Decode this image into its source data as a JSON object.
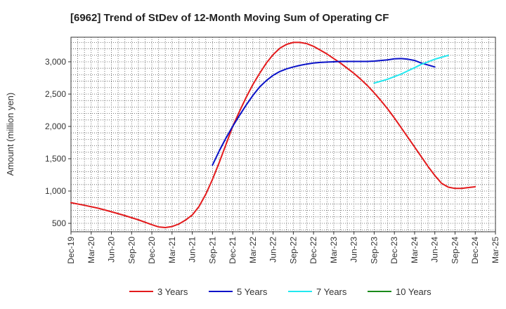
{
  "chart_data": {
    "type": "line",
    "title": "[6962]  Trend of StDev of 12-Month Moving Sum of Operating CF",
    "ylabel": "Amount (million yen)",
    "xlabel": "",
    "ylim": [
      370,
      3380
    ],
    "yticks": [
      500,
      1000,
      1500,
      2000,
      2500,
      3000
    ],
    "ytick_labels": [
      "500",
      "1,000",
      "1,500",
      "2,000",
      "2,500",
      "3,000"
    ],
    "x_categories": [
      "Dec-19",
      "Mar-20",
      "Jun-20",
      "Sep-20",
      "Dec-20",
      "Mar-21",
      "Jun-21",
      "Sep-21",
      "Dec-21",
      "Mar-22",
      "Jun-22",
      "Sep-22",
      "Dec-22",
      "Mar-23",
      "Jun-23",
      "Sep-23",
      "Dec-23",
      "Mar-24",
      "Jun-24",
      "Sep-24",
      "Dec-24",
      "Mar-25"
    ],
    "grid": true,
    "legend_position": "bottom",
    "series": [
      {
        "name": "3 Years",
        "color": "#e31a1c",
        "points": [
          [
            0,
            820
          ],
          [
            0.667,
            780
          ],
          [
            1.333,
            735
          ],
          [
            2,
            680
          ],
          [
            2.667,
            620
          ],
          [
            3.333,
            555
          ],
          [
            4,
            480
          ],
          [
            4.333,
            445
          ],
          [
            4.667,
            435
          ],
          [
            5,
            450
          ],
          [
            5.333,
            490
          ],
          [
            5.667,
            550
          ],
          [
            6,
            630
          ],
          [
            6.333,
            760
          ],
          [
            6.667,
            950
          ],
          [
            7,
            1180
          ],
          [
            7.333,
            1440
          ],
          [
            7.667,
            1720
          ],
          [
            8,
            2000
          ],
          [
            8.333,
            2230
          ],
          [
            8.667,
            2450
          ],
          [
            9,
            2650
          ],
          [
            9.333,
            2820
          ],
          [
            9.667,
            2980
          ],
          [
            10,
            3110
          ],
          [
            10.333,
            3210
          ],
          [
            10.667,
            3270
          ],
          [
            11,
            3300
          ],
          [
            11.333,
            3300
          ],
          [
            11.667,
            3280
          ],
          [
            12,
            3240
          ],
          [
            12.333,
            3180
          ],
          [
            12.667,
            3120
          ],
          [
            13,
            3050
          ],
          [
            13.333,
            2980
          ],
          [
            13.667,
            2900
          ],
          [
            14,
            2820
          ],
          [
            14.333,
            2730
          ],
          [
            14.667,
            2630
          ],
          [
            15,
            2520
          ],
          [
            15.333,
            2400
          ],
          [
            15.667,
            2270
          ],
          [
            16,
            2130
          ],
          [
            16.333,
            1980
          ],
          [
            16.667,
            1830
          ],
          [
            17,
            1680
          ],
          [
            17.333,
            1530
          ],
          [
            17.667,
            1380
          ],
          [
            18,
            1240
          ],
          [
            18.333,
            1120
          ],
          [
            18.667,
            1060
          ],
          [
            19,
            1040
          ],
          [
            19.333,
            1040
          ],
          [
            19.667,
            1055
          ],
          [
            20,
            1065
          ]
        ]
      },
      {
        "name": "5 Years",
        "color": "#0a12c8",
        "points": [
          [
            7,
            1400
          ],
          [
            7.333,
            1620
          ],
          [
            7.667,
            1820
          ],
          [
            8,
            2000
          ],
          [
            8.333,
            2170
          ],
          [
            8.667,
            2330
          ],
          [
            9,
            2480
          ],
          [
            9.333,
            2610
          ],
          [
            9.667,
            2710
          ],
          [
            10,
            2790
          ],
          [
            10.333,
            2850
          ],
          [
            10.667,
            2890
          ],
          [
            11,
            2920
          ],
          [
            11.333,
            2945
          ],
          [
            11.667,
            2965
          ],
          [
            12,
            2980
          ],
          [
            12.333,
            2990
          ],
          [
            12.667,
            2995
          ],
          [
            13,
            3000
          ],
          [
            13.333,
            3005
          ],
          [
            13.667,
            3005
          ],
          [
            14,
            3005
          ],
          [
            14.333,
            3005
          ],
          [
            14.667,
            3005
          ],
          [
            15,
            3010
          ],
          [
            15.333,
            3020
          ],
          [
            15.667,
            3030
          ],
          [
            16,
            3045
          ],
          [
            16.333,
            3050
          ],
          [
            16.667,
            3040
          ],
          [
            17,
            3020
          ],
          [
            17.333,
            2980
          ],
          [
            17.667,
            2950
          ],
          [
            18,
            2920
          ]
        ]
      },
      {
        "name": "7 Years",
        "color": "#22e8f0",
        "points": [
          [
            15,
            2670
          ],
          [
            15.333,
            2700
          ],
          [
            15.667,
            2730
          ],
          [
            16,
            2770
          ],
          [
            16.333,
            2810
          ],
          [
            16.667,
            2860
          ],
          [
            17,
            2910
          ],
          [
            17.333,
            2960
          ],
          [
            17.667,
            3000
          ],
          [
            18,
            3040
          ],
          [
            18.333,
            3070
          ],
          [
            18.667,
            3100
          ]
        ]
      },
      {
        "name": "10 Years",
        "color": "#1a8a1a",
        "points": []
      }
    ]
  }
}
